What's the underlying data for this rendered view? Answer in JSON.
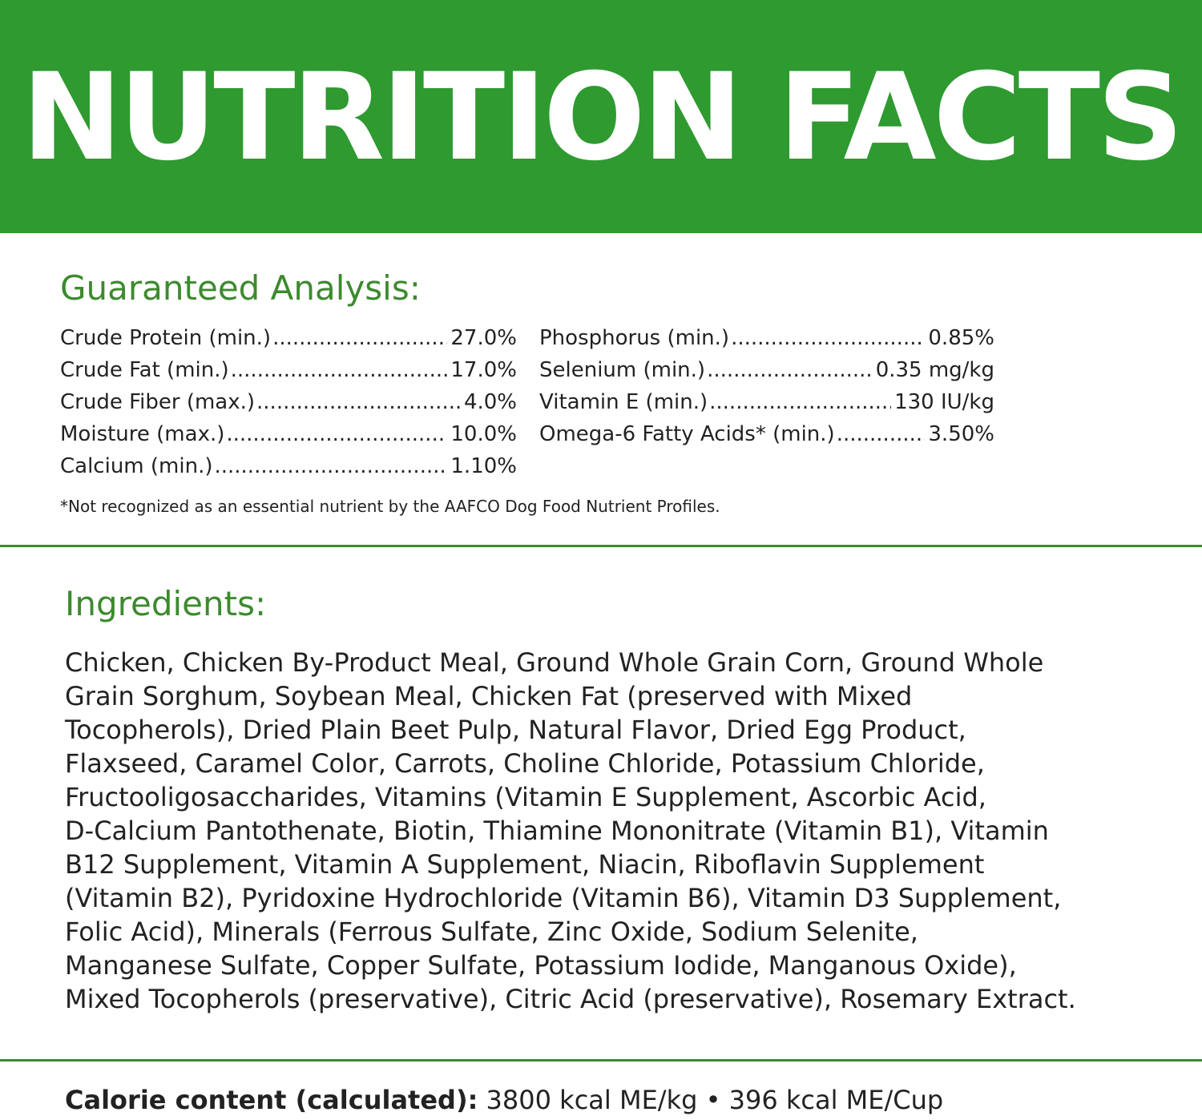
{
  "header": {
    "title": "NUTRITION FACTS"
  },
  "guaranteed_analysis": {
    "heading": "Guaranteed Analysis:",
    "left_column": [
      {
        "label": "Crude Protein (min.)",
        "value": "27.0%"
      },
      {
        "label": "Crude Fat (min.)",
        "value": "17.0%"
      },
      {
        "label": "Crude Fiber (max.)",
        "value": "4.0%"
      },
      {
        "label": "Moisture (max.)",
        "value": "10.0%"
      },
      {
        "label": "Calcium (min.)",
        "value": "1.10%"
      }
    ],
    "right_column": [
      {
        "label": "Phosphorus (min.)",
        "value": "0.85%"
      },
      {
        "label": "Selenium (min.)",
        "value": "0.35 mg/kg"
      },
      {
        "label": "Vitamin E (min.)",
        "value": "130 IU/kg"
      },
      {
        "label": "Omega-6 Fatty Acids* (min.)",
        "value": "3.50%"
      }
    ],
    "footnote": "*Not recognized as an essential nutrient by the AAFCO Dog Food Nutrient Profiles."
  },
  "ingredients": {
    "heading": "Ingredients:",
    "lines": [
      "Chicken, Chicken By-Product Meal, Ground Whole Grain Corn, Ground Whole",
      "Grain Sorghum, Soybean Meal, Chicken Fat (preserved with Mixed",
      "Tocopherols), Dried Plain Beet Pulp, Natural Flavor, Dried Egg Product,",
      "Flaxseed, Caramel Color, Carrots, Choline Chloride, Potassium Chloride,",
      "Fructooligosaccharides, Vitamins (Vitamin E Supplement, Ascorbic Acid,",
      "D-Calcium Pantothenate, Biotin, Thiamine Mononitrate (Vitamin B1), Vitamin",
      "B12 Supplement, Vitamin A Supplement, Niacin, Riboflavin Supplement",
      "(Vitamin B2), Pyridoxine Hydrochloride (Vitamin B6), Vitamin D3 Supplement,",
      "Folic Acid), Minerals (Ferrous Sulfate, Zinc Oxide, Sodium Selenite,",
      "Manganese Sulfate, Copper Sulfate, Potassium Iodide, Manganous Oxide),",
      "Mixed Tocopherols (preservative), Citric Acid (preservative), Rosemary Extract."
    ]
  },
  "calorie": {
    "label": "Calorie content (calculated):",
    "value": " 3800 kcal ME/kg • 396 kcal ME/Cup"
  },
  "colors": {
    "banner_green": "#2e9a30",
    "heading_green": "#3d8a2f",
    "text": "#222222"
  }
}
